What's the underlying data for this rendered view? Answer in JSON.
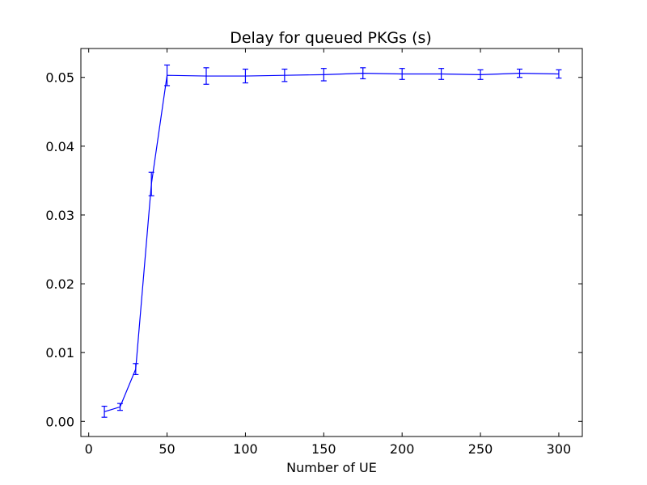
{
  "chart_data": {
    "type": "line",
    "title": "Delay for queued PKGs (s)",
    "xlabel": "Number of UE",
    "ylabel": "",
    "xlim": [
      -5,
      315
    ],
    "ylim": [
      -0.0022,
      0.0542
    ],
    "xticks": [
      0,
      50,
      100,
      150,
      200,
      250,
      300
    ],
    "xtick_labels": [
      "0",
      "50",
      "100",
      "150",
      "200",
      "250",
      "300"
    ],
    "yticks": [
      0.0,
      0.01,
      0.02,
      0.03,
      0.04,
      0.05
    ],
    "ytick_labels": [
      "0.00",
      "0.01",
      "0.02",
      "0.03",
      "0.04",
      "0.05"
    ],
    "grid": false,
    "legend": "none",
    "series": [
      {
        "color": "#0000ff",
        "x": [
          10,
          20,
          30,
          40,
          50,
          75,
          100,
          125,
          150,
          175,
          200,
          225,
          250,
          275,
          300
        ],
        "y": [
          0.0014,
          0.0021,
          0.0076,
          0.0345,
          0.0503,
          0.0502,
          0.0502,
          0.0503,
          0.0504,
          0.0506,
          0.0505,
          0.0505,
          0.0504,
          0.0506,
          0.0505
        ],
        "err": [
          0.0008,
          0.0005,
          0.0008,
          0.0017,
          0.0015,
          0.0012,
          0.001,
          0.0009,
          0.0009,
          0.0008,
          0.0008,
          0.0008,
          0.0007,
          0.0006,
          0.0006
        ]
      }
    ]
  }
}
